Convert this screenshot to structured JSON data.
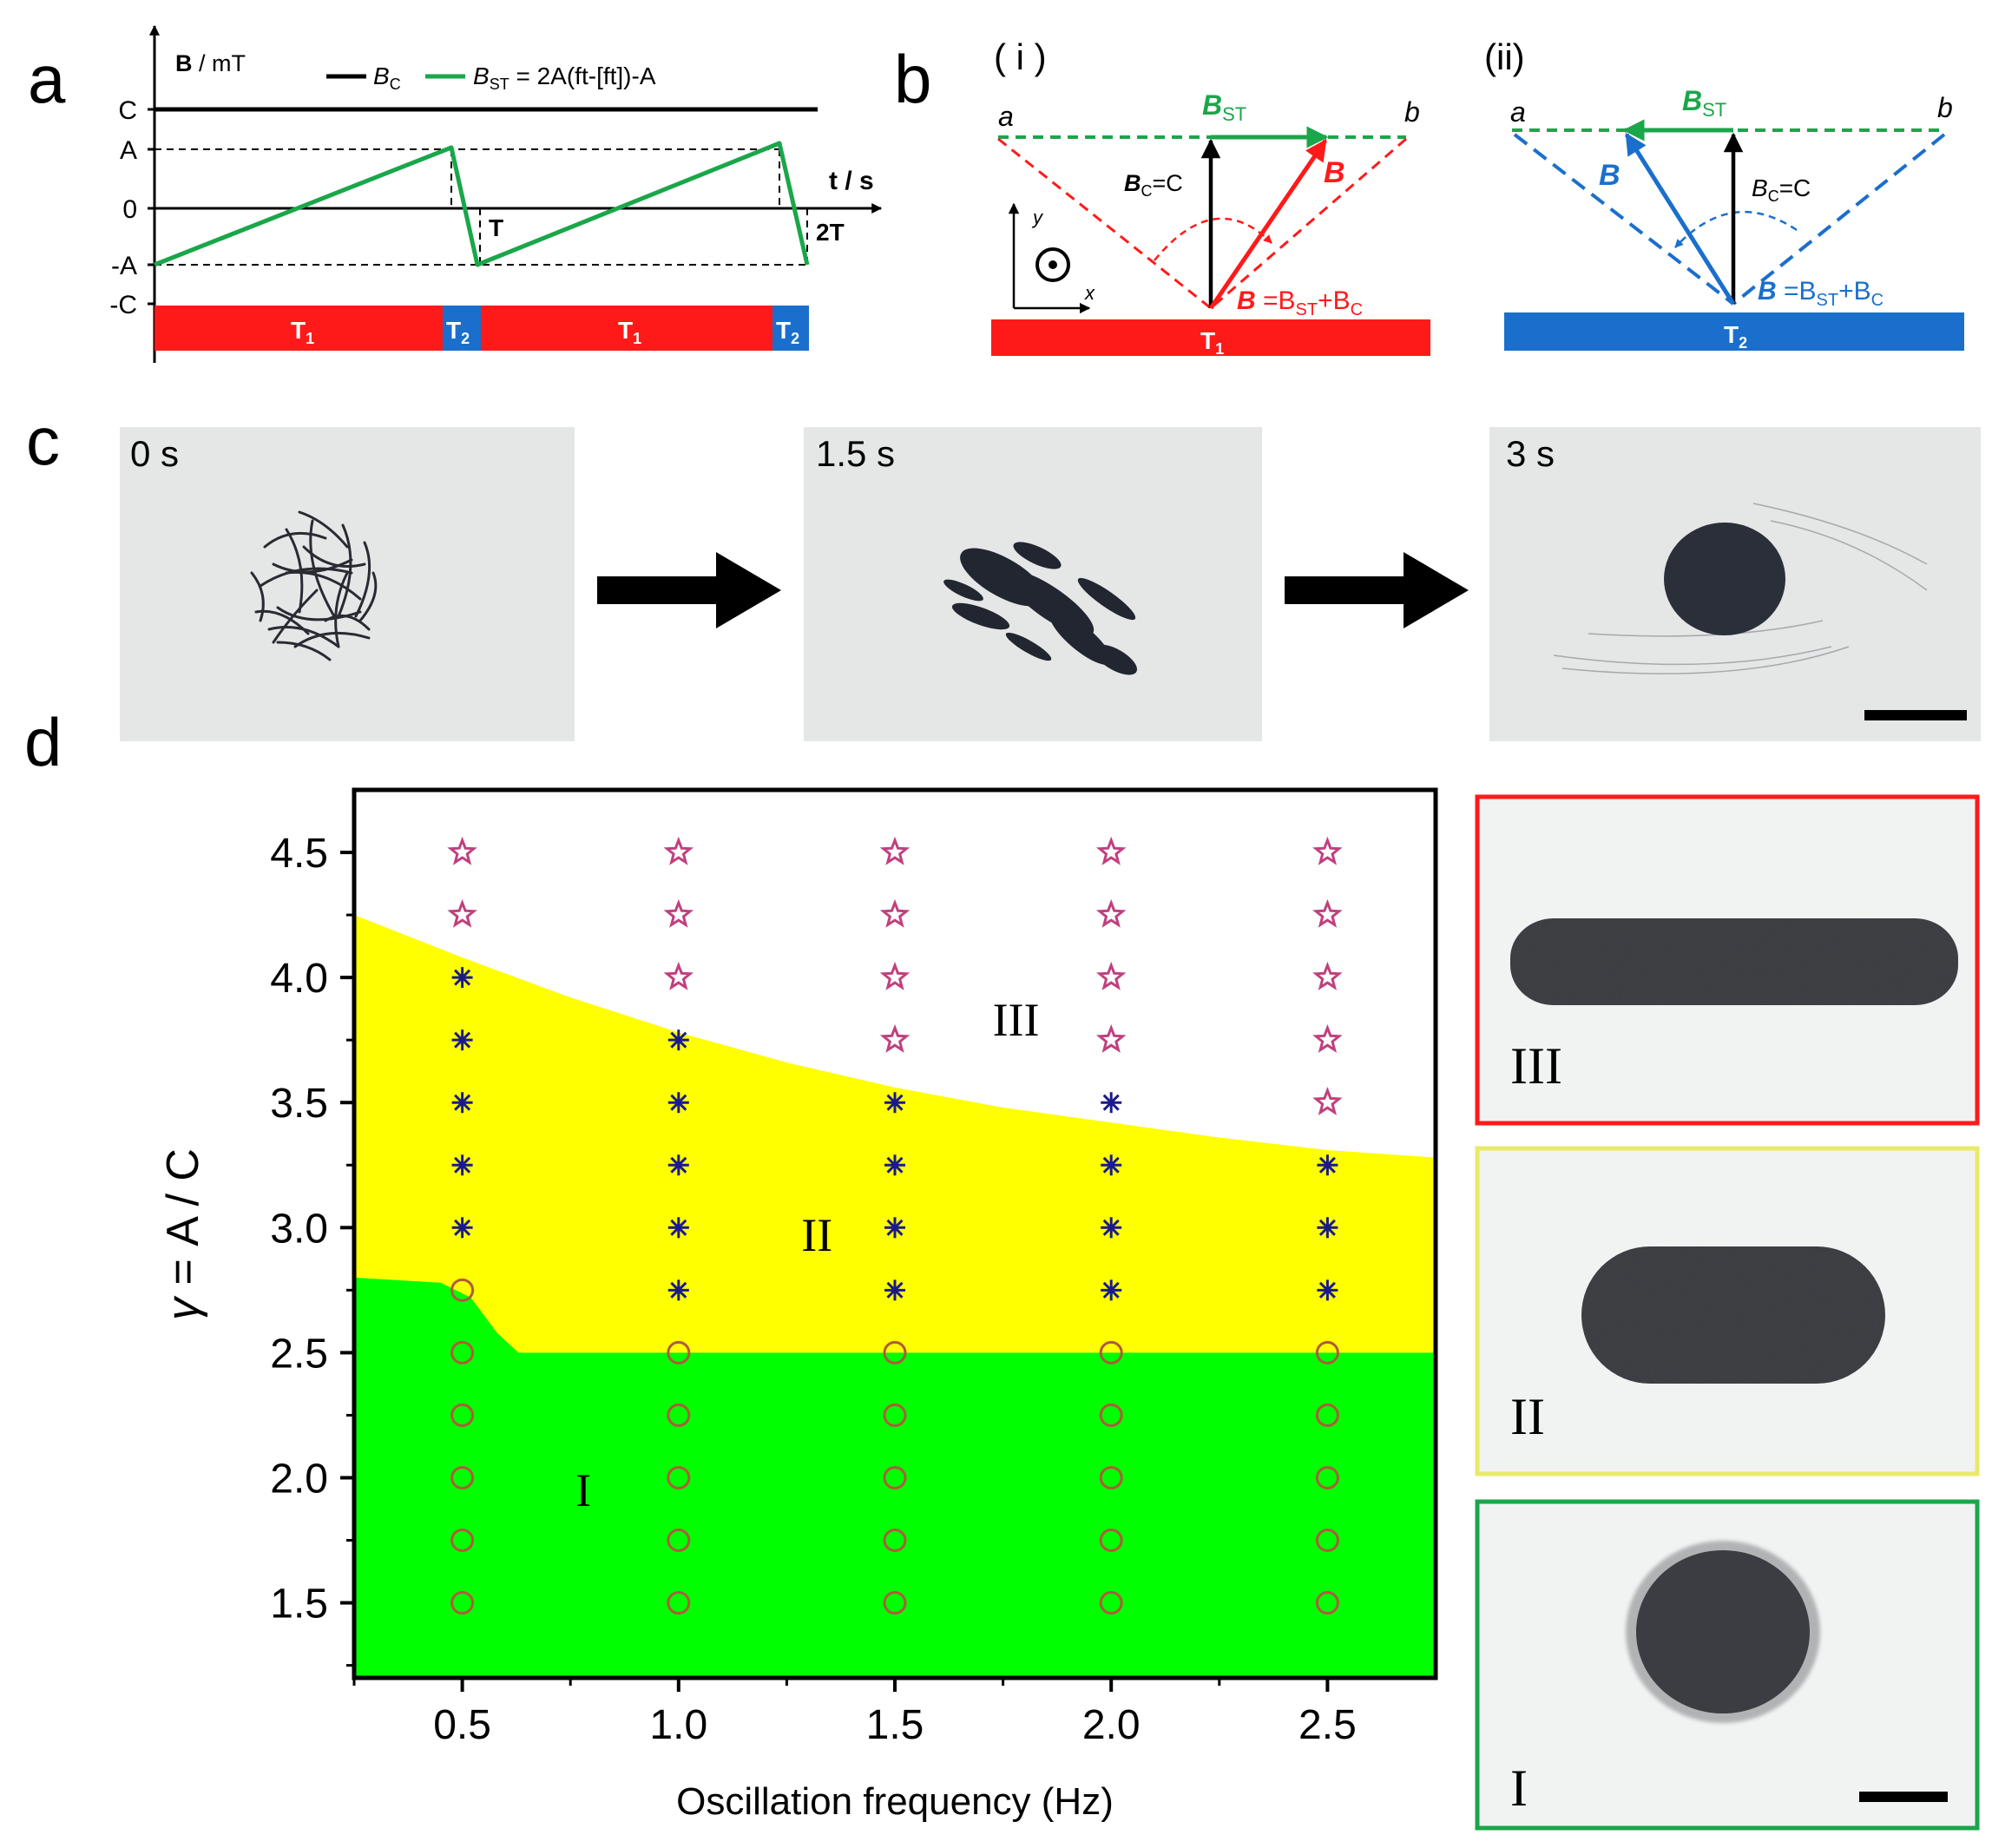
{
  "panel_labels": {
    "a": "a",
    "b": "b",
    "c": "c",
    "d": "d"
  },
  "colors": {
    "green": "#1aa64a",
    "red": "#ff1a1a",
    "blue": "#1a6fcc",
    "black": "#000000",
    "region_I": "#00ff00",
    "region_II": "#ffff00",
    "region_III": "#ffffff",
    "star": "#c0407e",
    "asterisk": "#1a1a8c",
    "circle": "#b05a3c"
  },
  "panel_a": {
    "ylabel_B": "B",
    "ylabel_unit": " / mT",
    "xlabel": "t / s",
    "legend_bc": "B",
    "legend_bc_sub": "C",
    "legend_bst": "B",
    "legend_bst_sub": "ST",
    "legend_formula": " = 2A(ft-[ft])-A",
    "ticks": {
      "C": "C",
      "A": "A",
      "zero": "0",
      "negA": "-A",
      "negC": "-C"
    },
    "period_labels": {
      "T": "T",
      "twoT": "2T"
    },
    "phase_T1": "T",
    "phase_T1_sub": "1",
    "phase_T2": "T",
    "phase_T2_sub": "2"
  },
  "panel_b": {
    "sub_i": "( i )",
    "sub_ii": "(ii)",
    "point_a": "a",
    "point_b": "b",
    "bst": "B",
    "bst_sub": "ST",
    "bc": "B",
    "bc_sub": "C",
    "bc_eq": "=C",
    "b": "B",
    "sum_lhs": "B",
    "sum_mid": " =B",
    "sum_plus": "+B",
    "axis_x": "x",
    "axis_y": "y",
    "bar_i": "T",
    "bar_i_sub": "1",
    "bar_ii": "T",
    "bar_ii_sub": "2"
  },
  "panel_c": {
    "frames": [
      "0 s",
      "1.5 s",
      "3 s"
    ]
  },
  "side_images": {
    "III": "III",
    "II": "II",
    "I": "I"
  },
  "chart_data": {
    "type": "scatter",
    "xlabel": "Oscillation frequency (Hz)",
    "ylabel_gamma": "γ",
    "ylabel_rest": " = A / C",
    "xlim": [
      0.25,
      2.75
    ],
    "ylim": [
      1.2,
      4.75
    ],
    "x_ticks": [
      "0.5",
      "1.0",
      "1.5",
      "2.0",
      "2.5"
    ],
    "y_ticks": [
      "1.5",
      "2.0",
      "2.5",
      "3.0",
      "3.5",
      "4.0",
      "4.5"
    ],
    "region_labels": [
      {
        "label": "I",
        "x": 0.78,
        "y": 1.95
      },
      {
        "label": "II",
        "x": 1.32,
        "y": 2.97
      },
      {
        "label": "III",
        "x": 1.78,
        "y": 3.83
      }
    ],
    "boundary_I_II": [
      [
        0.25,
        2.8
      ],
      [
        0.45,
        2.78
      ],
      [
        0.52,
        2.72
      ],
      [
        0.58,
        2.58
      ],
      [
        0.63,
        2.5
      ],
      [
        2.75,
        2.5
      ]
    ],
    "boundary_II_III": [
      [
        0.25,
        4.25
      ],
      [
        0.5,
        4.08
      ],
      [
        0.75,
        3.92
      ],
      [
        1.0,
        3.78
      ],
      [
        1.25,
        3.66
      ],
      [
        1.5,
        3.56
      ],
      [
        1.75,
        3.48
      ],
      [
        2.0,
        3.42
      ],
      [
        2.25,
        3.36
      ],
      [
        2.5,
        3.31
      ],
      [
        2.75,
        3.28
      ]
    ],
    "series": [
      {
        "name": "I (circle)",
        "marker": "circle",
        "points": [
          [
            0.5,
            1.5
          ],
          [
            0.5,
            1.75
          ],
          [
            0.5,
            2.0
          ],
          [
            0.5,
            2.25
          ],
          [
            0.5,
            2.5
          ],
          [
            0.5,
            2.75
          ],
          [
            1.0,
            1.5
          ],
          [
            1.0,
            1.75
          ],
          [
            1.0,
            2.0
          ],
          [
            1.0,
            2.25
          ],
          [
            1.0,
            2.5
          ],
          [
            1.5,
            1.5
          ],
          [
            1.5,
            1.75
          ],
          [
            1.5,
            2.0
          ],
          [
            1.5,
            2.25
          ],
          [
            1.5,
            2.5
          ],
          [
            2.0,
            1.5
          ],
          [
            2.0,
            1.75
          ],
          [
            2.0,
            2.0
          ],
          [
            2.0,
            2.25
          ],
          [
            2.0,
            2.5
          ],
          [
            2.5,
            1.5
          ],
          [
            2.5,
            1.75
          ],
          [
            2.5,
            2.0
          ],
          [
            2.5,
            2.25
          ],
          [
            2.5,
            2.5
          ]
        ]
      },
      {
        "name": "II (asterisk)",
        "marker": "asterisk",
        "points": [
          [
            0.5,
            3.0
          ],
          [
            0.5,
            3.25
          ],
          [
            0.5,
            3.5
          ],
          [
            0.5,
            3.75
          ],
          [
            0.5,
            4.0
          ],
          [
            1.0,
            2.75
          ],
          [
            1.0,
            3.0
          ],
          [
            1.0,
            3.25
          ],
          [
            1.0,
            3.5
          ],
          [
            1.0,
            3.75
          ],
          [
            1.5,
            2.75
          ],
          [
            1.5,
            3.0
          ],
          [
            1.5,
            3.25
          ],
          [
            1.5,
            3.5
          ],
          [
            2.0,
            2.75
          ],
          [
            2.0,
            3.0
          ],
          [
            2.0,
            3.25
          ],
          [
            2.0,
            3.5
          ],
          [
            2.5,
            2.75
          ],
          [
            2.5,
            3.0
          ],
          [
            2.5,
            3.25
          ]
        ]
      },
      {
        "name": "III (star)",
        "marker": "star",
        "points": [
          [
            0.5,
            4.25
          ],
          [
            0.5,
            4.5
          ],
          [
            1.0,
            4.0
          ],
          [
            1.0,
            4.25
          ],
          [
            1.0,
            4.5
          ],
          [
            1.5,
            3.75
          ],
          [
            1.5,
            4.0
          ],
          [
            1.5,
            4.25
          ],
          [
            1.5,
            4.5
          ],
          [
            2.0,
            3.75
          ],
          [
            2.0,
            4.0
          ],
          [
            2.0,
            4.25
          ],
          [
            2.0,
            4.5
          ],
          [
            2.5,
            3.5
          ],
          [
            2.5,
            3.75
          ],
          [
            2.5,
            4.0
          ],
          [
            2.5,
            4.25
          ],
          [
            2.5,
            4.5
          ]
        ]
      }
    ]
  }
}
